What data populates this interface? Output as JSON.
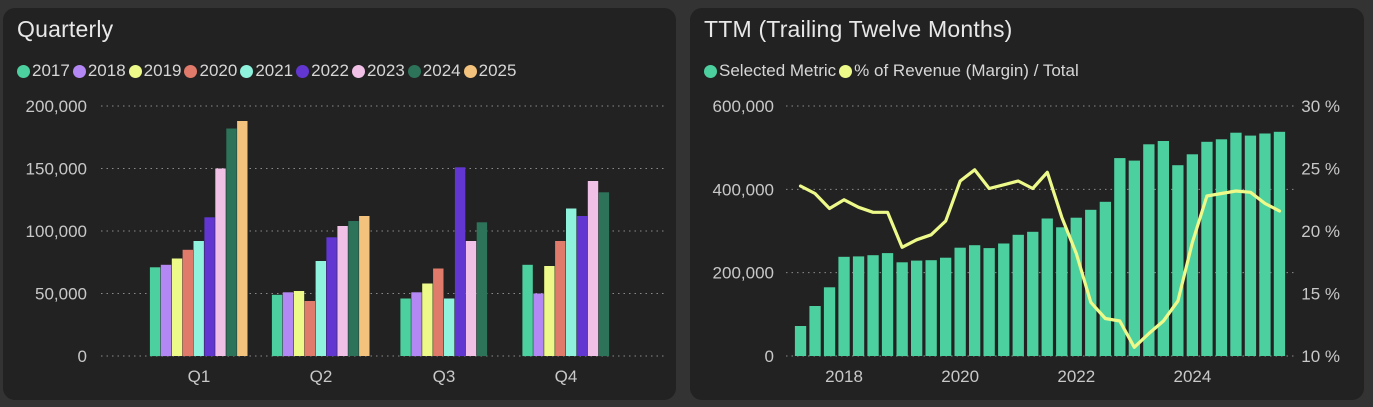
{
  "chart_data": [
    {
      "type": "bar",
      "title": "Quarterly",
      "categories": [
        "Q1",
        "Q2",
        "Q3",
        "Q4"
      ],
      "ylim": [
        0,
        200000
      ],
      "yticks": [
        0,
        50000,
        100000,
        150000,
        200000
      ],
      "ytick_labels": [
        "0",
        "50,000",
        "100,000",
        "150,000",
        "200,000"
      ],
      "grid": true,
      "legend_position": "top-left",
      "series": [
        {
          "name": "2017",
          "color": "#4dd0a0",
          "values": [
            71000,
            49000,
            46000,
            73000
          ]
        },
        {
          "name": "2018",
          "color": "#b388f5",
          "values": [
            73000,
            51000,
            51000,
            50000
          ]
        },
        {
          "name": "2019",
          "color": "#edfa8a",
          "values": [
            78000,
            52000,
            58000,
            72000
          ]
        },
        {
          "name": "2020",
          "color": "#e07a6a",
          "values": [
            85000,
            44000,
            70000,
            92000
          ]
        },
        {
          "name": "2021",
          "color": "#8ef2dc",
          "values": [
            92000,
            76000,
            46000,
            118000
          ]
        },
        {
          "name": "2022",
          "color": "#6236d1",
          "values": [
            111000,
            95000,
            151000,
            112000
          ]
        },
        {
          "name": "2023",
          "color": "#f1c0e6",
          "values": [
            150000,
            104000,
            92000,
            140000
          ]
        },
        {
          "name": "2024",
          "color": "#2d735a",
          "values": [
            182000,
            108000,
            107000,
            131000
          ]
        },
        {
          "name": "2025",
          "color": "#f3c27c",
          "values": [
            188000,
            112000,
            null,
            null
          ]
        }
      ]
    },
    {
      "type": "bar+line",
      "title": "TTM (Trailing Twelve Months)",
      "legend": [
        "Selected Metric",
        "% of Revenue (Margin) / Total"
      ],
      "legend_position": "top-left",
      "grid": true,
      "bar_color": "#4dd0a0",
      "line_color": "#edfa8a",
      "x_start": 2017.25,
      "x_step": 0.25,
      "xlim": [
        2017.0,
        2025.75
      ],
      "xticks": [
        2018,
        2020,
        2022,
        2024
      ],
      "xtick_labels": [
        "2018",
        "2020",
        "2022",
        "2024"
      ],
      "ylim_left": [
        0,
        600000
      ],
      "yticks_left": [
        0,
        200000,
        400000,
        600000
      ],
      "ytick_labels_left": [
        "0",
        "200,000",
        "400,000",
        "600,000"
      ],
      "ylim_right": [
        10,
        30
      ],
      "yticks_right": [
        10,
        15,
        20,
        25,
        30
      ],
      "ytick_labels_right": [
        "10 %",
        "15 %",
        "20 %",
        "25 %",
        "30 %"
      ],
      "bars": [
        72000,
        120000,
        165000,
        238000,
        239000,
        242000,
        247000,
        225000,
        229000,
        230000,
        236000,
        260000,
        266000,
        259000,
        270000,
        291000,
        298000,
        330000,
        309000,
        332000,
        351000,
        370000,
        475000,
        469000,
        508000,
        516000,
        458000,
        484000,
        514000,
        520000,
        536000,
        529000,
        534000,
        538000
      ],
      "margin_pct": [
        23.6,
        23.0,
        21.8,
        22.5,
        21.9,
        21.5,
        21.5,
        18.7,
        19.3,
        19.7,
        20.8,
        24.0,
        24.9,
        23.4,
        23.7,
        24.0,
        23.4,
        24.7,
        21.1,
        18.2,
        14.3,
        13.0,
        12.8,
        10.7,
        11.8,
        12.8,
        14.4,
        19.1,
        22.8,
        23.0,
        23.2,
        23.1,
        22.2,
        21.6
      ]
    }
  ]
}
